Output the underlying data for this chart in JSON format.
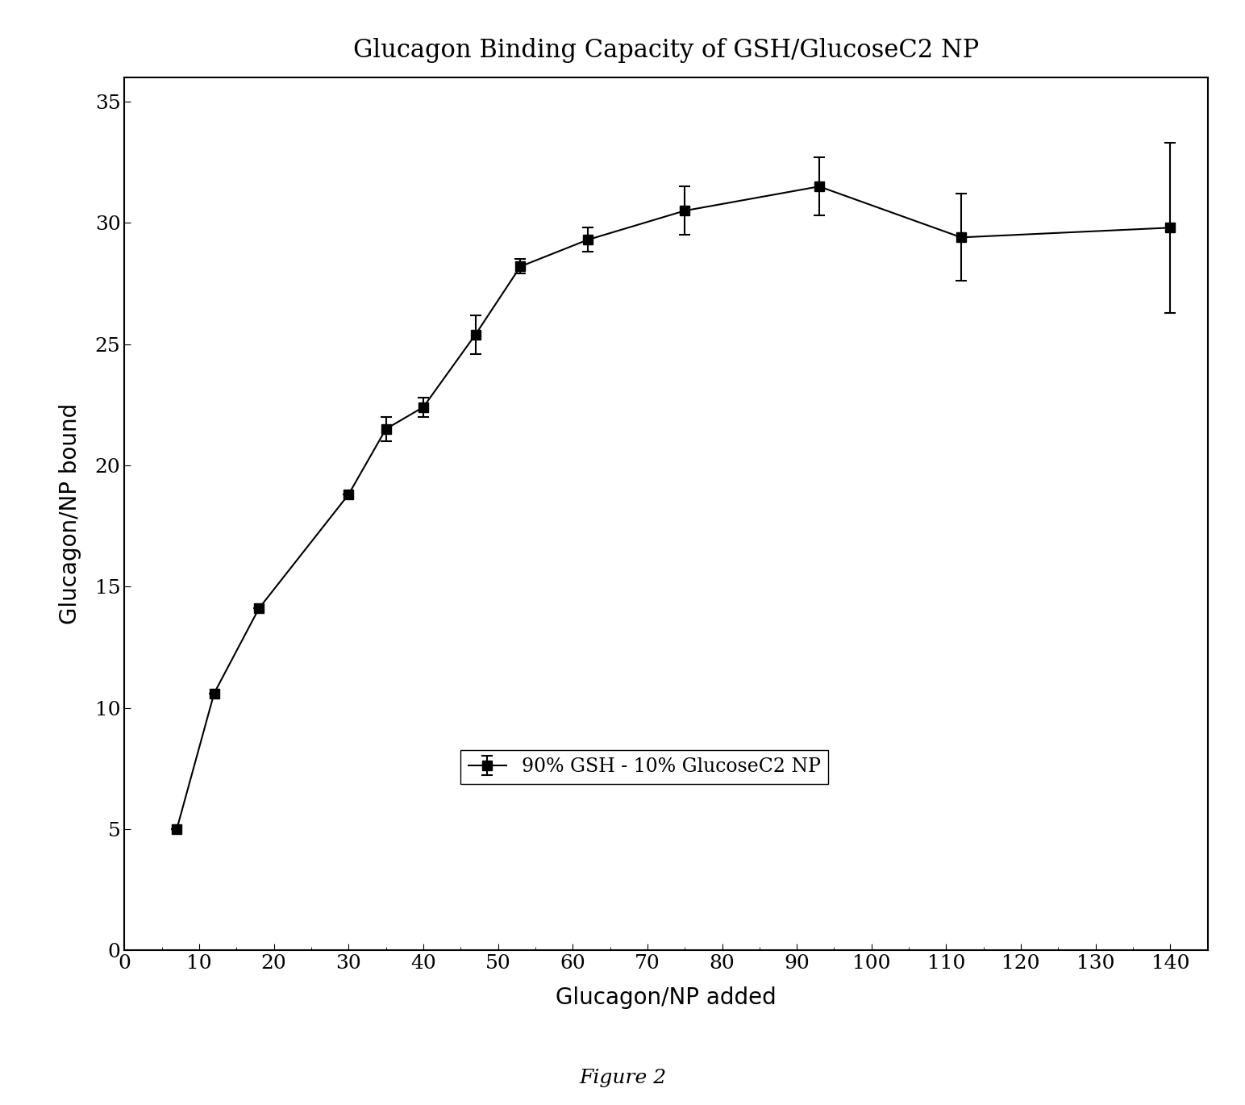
{
  "title": "Glucagon Binding Capacity of GSH/GlucoseC2 NP",
  "xlabel": "Glucagon/NP added",
  "ylabel": "Glucagon/NP bound",
  "caption": "Figure 2",
  "x": [
    7,
    12,
    18,
    30,
    35,
    40,
    47,
    53,
    62,
    75,
    93,
    112,
    140
  ],
  "y": [
    5.0,
    10.6,
    14.1,
    18.8,
    21.5,
    22.4,
    25.4,
    28.2,
    29.3,
    30.5,
    31.5,
    29.4,
    29.8
  ],
  "yerr": [
    0.0,
    0.0,
    0.0,
    0.0,
    0.5,
    0.4,
    0.8,
    0.3,
    0.5,
    1.0,
    1.2,
    1.8,
    3.5
  ],
  "xlim": [
    0,
    145
  ],
  "ylim": [
    0,
    36
  ],
  "xticks": [
    0,
    10,
    20,
    30,
    40,
    50,
    60,
    70,
    80,
    90,
    100,
    110,
    120,
    130,
    140
  ],
  "yticks": [
    0,
    5,
    10,
    15,
    20,
    25,
    30,
    35
  ],
  "legend_label": "90% GSH - 10% GlucoseC2 NP",
  "line_color": "#000000",
  "marker": "s",
  "marker_color": "#000000",
  "marker_size": 9,
  "line_width": 1.5,
  "background_color": "#ffffff",
  "title_fontsize": 22,
  "label_fontsize": 20,
  "tick_fontsize": 18,
  "legend_fontsize": 17,
  "caption_fontsize": 18
}
